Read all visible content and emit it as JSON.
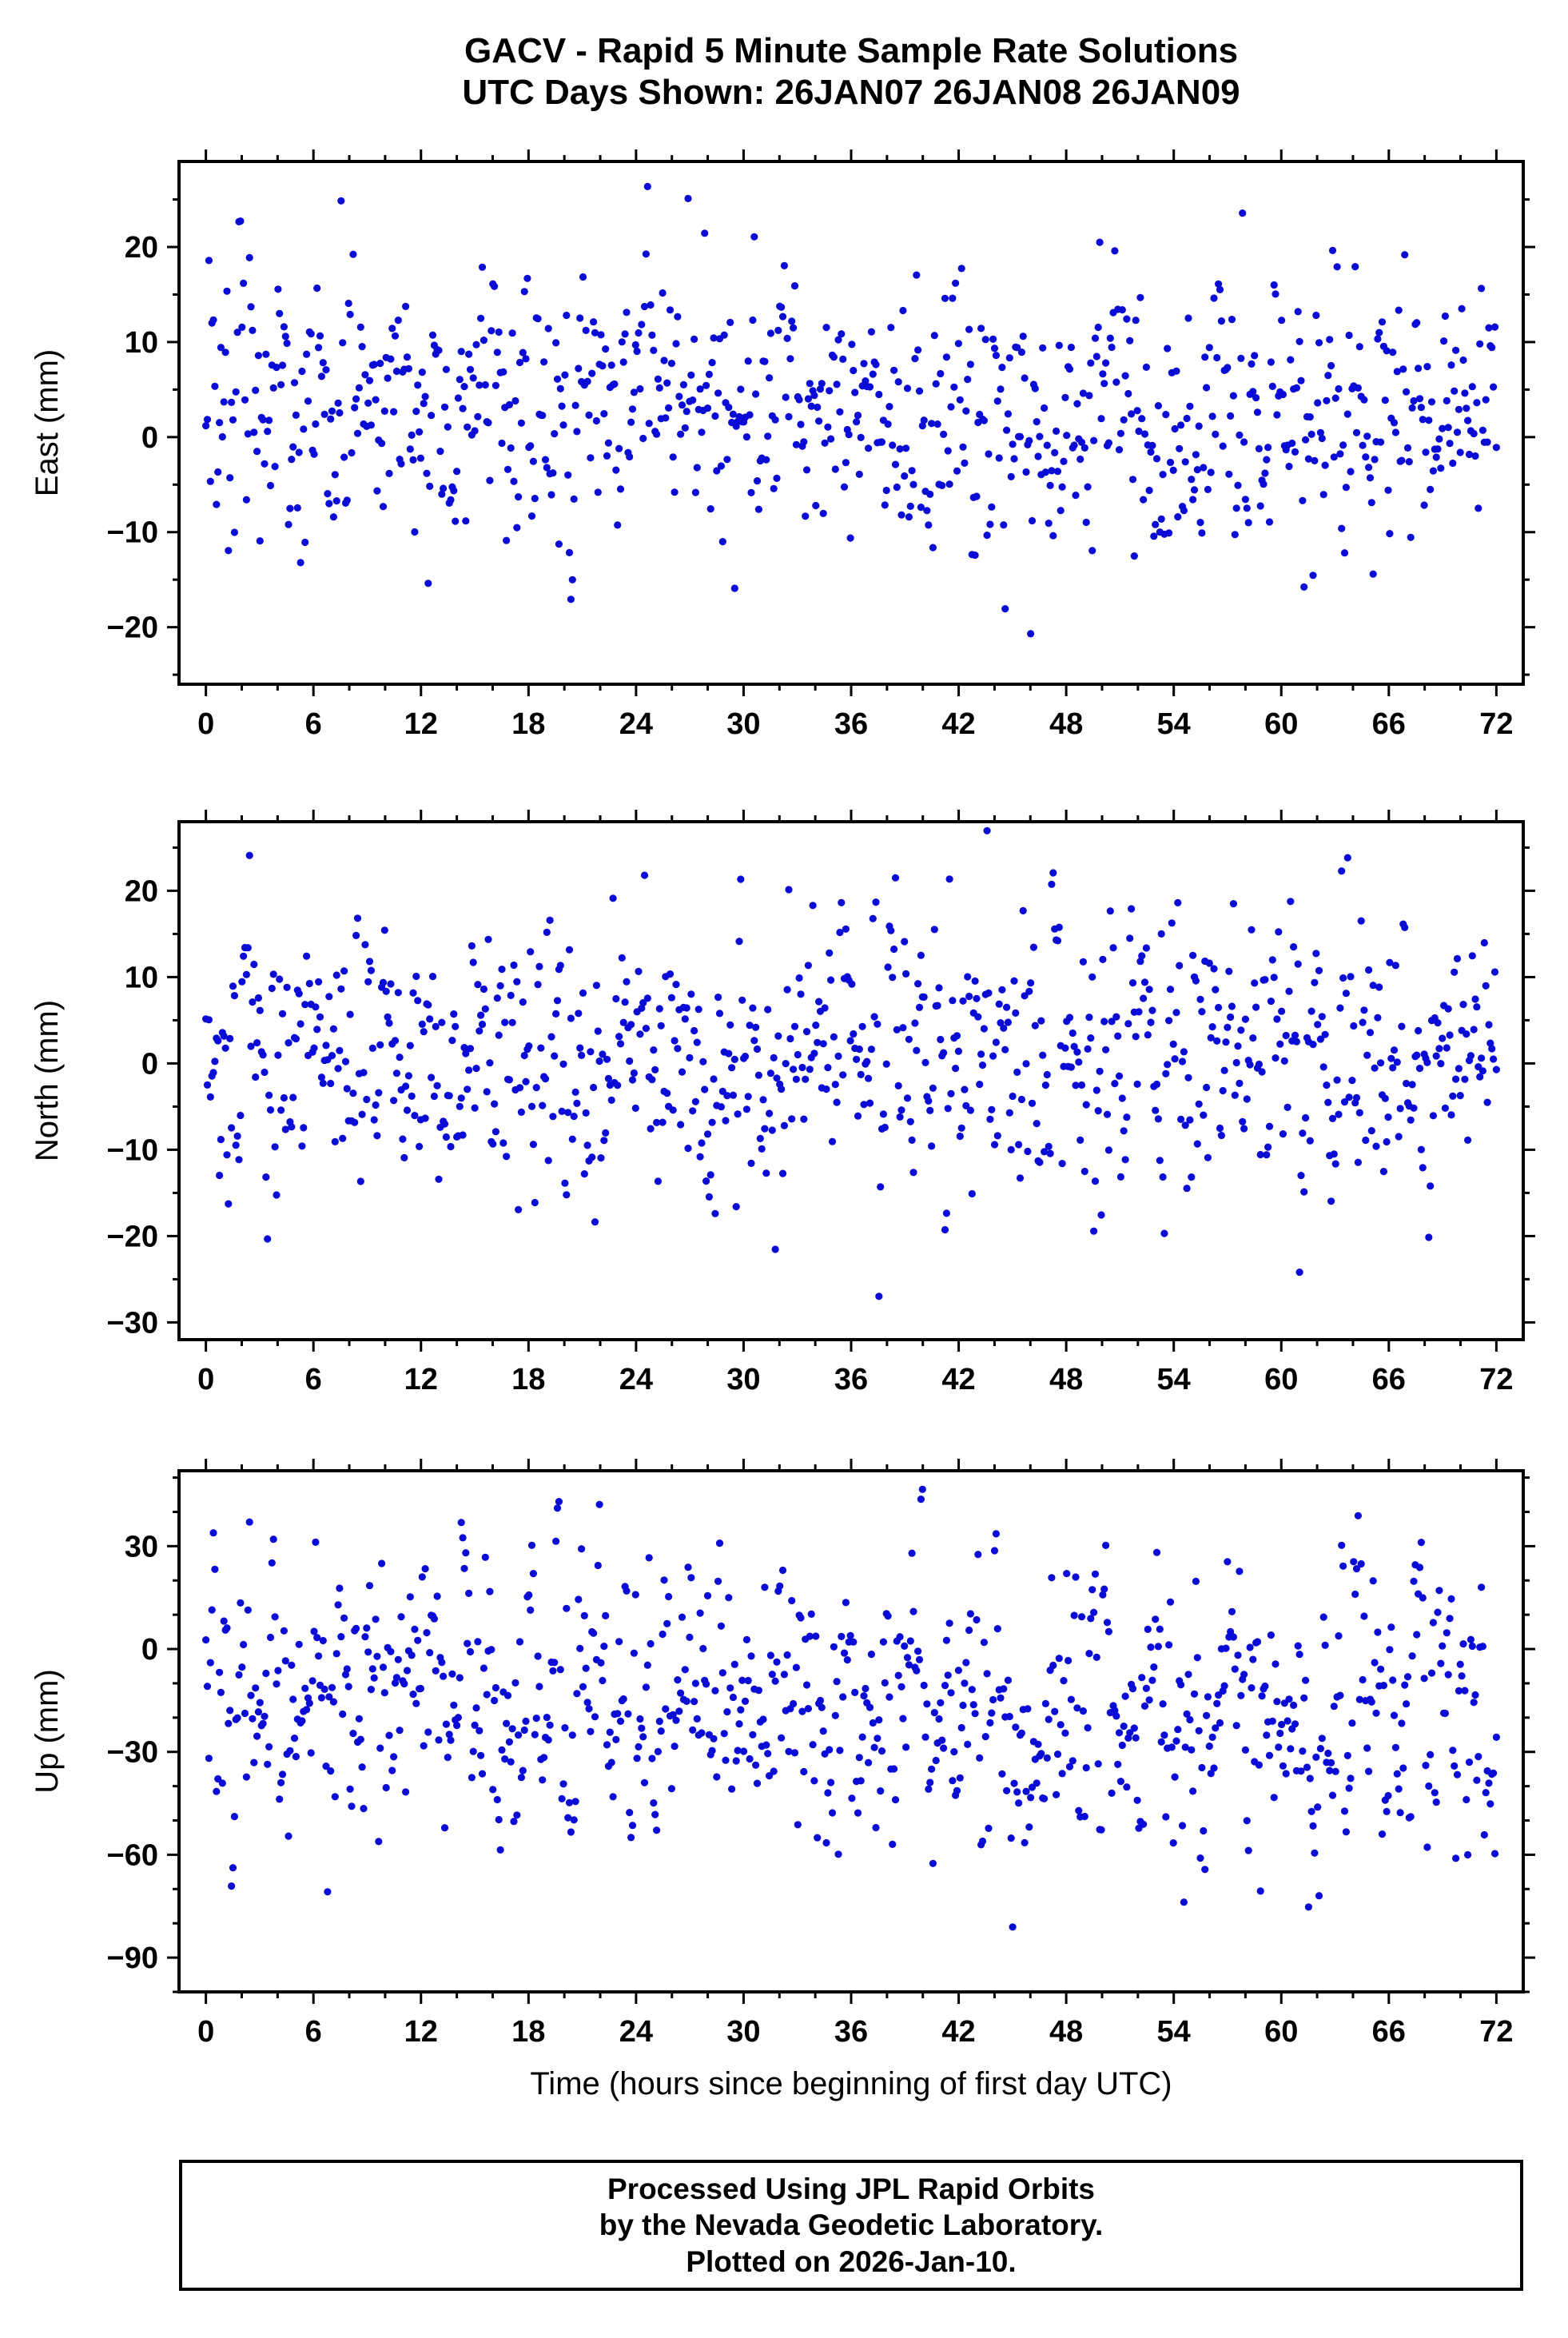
{
  "title": {
    "line1": "GACV - Rapid 5 Minute Sample Rate Solutions",
    "line2": "UTC Days Shown:  26JAN07 26JAN08 26JAN09"
  },
  "station": "GACV",
  "utc_days": [
    "26JAN07",
    "26JAN08",
    "26JAN09"
  ],
  "xlabel": "Time (hours since beginning of first day UTC)",
  "footer": {
    "line1": "Processed Using JPL Rapid Orbits",
    "line2": "by the Nevada Geodetic Laboratory.",
    "line3": "Plotted on 2026-Jan-10."
  },
  "style": {
    "marker_color": "#0b0bd6",
    "axis_color": "#000000",
    "marker_radius": 4.6
  },
  "chart_data": [
    {
      "type": "scatter",
      "name": "East",
      "ylabel": "East (mm)",
      "xlabel": "",
      "x_units": "hours",
      "y_units": "mm",
      "xlim": [
        -1.5,
        73.5
      ],
      "ylim": [
        -26,
        29
      ],
      "xticks": [
        0,
        6,
        12,
        18,
        24,
        30,
        36,
        42,
        48,
        54,
        60,
        66,
        72
      ],
      "yticks": [
        -20,
        -10,
        0,
        10,
        20
      ],
      "x_minor_step": 2,
      "y_minor_step": 5,
      "n_points": 860,
      "x_start": 0,
      "x_end": 72,
      "mean": 2.0,
      "std": 7.3,
      "ar": 0.35,
      "seed": 20070126,
      "approx_range": [
        -23,
        28
      ],
      "grid": false,
      "legend": null
    },
    {
      "type": "scatter",
      "name": "North",
      "ylabel": "North (mm)",
      "xlabel": "",
      "x_units": "hours",
      "y_units": "mm",
      "xlim": [
        -1.5,
        73.5
      ],
      "ylim": [
        -32,
        28
      ],
      "xticks": [
        0,
        6,
        12,
        18,
        24,
        30,
        36,
        42,
        48,
        54,
        60,
        66,
        72
      ],
      "yticks": [
        -30,
        -20,
        -10,
        0,
        10,
        20
      ],
      "x_minor_step": 2,
      "y_minor_step": 5,
      "n_points": 860,
      "x_start": 0,
      "x_end": 72,
      "mean": 1.5,
      "std": 8.4,
      "ar": 0.35,
      "seed": 20080126,
      "approx_range": [
        -31,
        27
      ],
      "grid": false,
      "legend": null
    },
    {
      "type": "scatter",
      "name": "Up",
      "ylabel": "Up (mm)",
      "xlabel": "Time (hours since beginning of first day UTC)",
      "x_units": "hours",
      "y_units": "mm",
      "xlim": [
        -1.5,
        73.5
      ],
      "ylim": [
        -100,
        52
      ],
      "xticks": [
        0,
        6,
        12,
        18,
        24,
        30,
        36,
        42,
        48,
        54,
        60,
        66,
        72
      ],
      "yticks": [
        -90,
        -60,
        -30,
        0,
        30
      ],
      "x_minor_step": 2,
      "y_minor_step": 10,
      "n_points": 860,
      "x_start": 0,
      "x_end": 72,
      "mean": -16.0,
      "std": 22.5,
      "ar": 0.45,
      "seed": 20090126,
      "approx_range": [
        -98,
        48
      ],
      "grid": false,
      "legend": null
    }
  ]
}
